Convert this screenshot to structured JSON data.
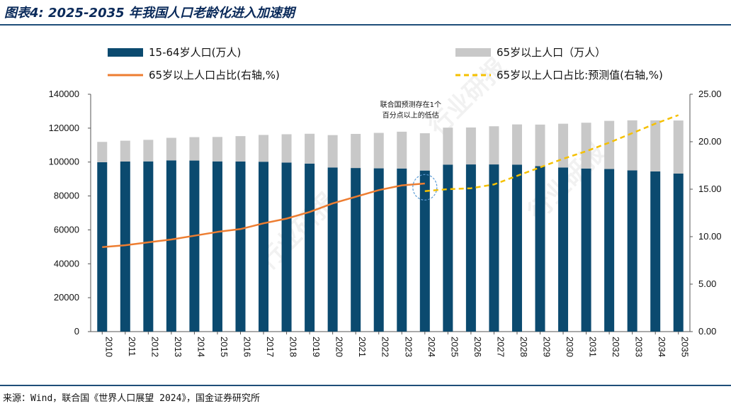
{
  "title": "图表4: 2025-2035 年我国人口老龄化进入加速期",
  "source": "来源：Wind，联合国《世界人口展望 2024》，国金证券研究所",
  "watermark": "行业研报",
  "colors": {
    "bar_working": "#0b4a6f",
    "bar_elderly": "#c8c8c8",
    "line_actual": "#ed7d31",
    "line_forecast": "#f5c000",
    "annot_circle": "#5b9bd5",
    "rule": "#1f4e79"
  },
  "chart_data": {
    "type": "bar",
    "categories": [
      "2010",
      "2011",
      "2012",
      "2013",
      "2014",
      "2015",
      "2016",
      "2017",
      "2018",
      "2019",
      "2020",
      "2021",
      "2022",
      "2023",
      "2024",
      "2025",
      "2026",
      "2027",
      "2028",
      "2029",
      "2030",
      "2031",
      "2032",
      "2033",
      "2034",
      "2035"
    ],
    "series": [
      {
        "name": "15-64岁人口(万人)",
        "kind": "stacked-bar",
        "axis": "left",
        "values": [
          99900,
          100300,
          100400,
          101000,
          100900,
          100400,
          100300,
          100200,
          99700,
          99100,
          96800,
          96500,
          96300,
          96200,
          95000,
          98500,
          98600,
          98600,
          98500,
          97600,
          96800,
          96200,
          95900,
          95100,
          94500,
          93200
        ]
      },
      {
        "name": "65岁以上人口（万人）",
        "kind": "stacked-bar",
        "axis": "left",
        "values": [
          12000,
          12300,
          12700,
          13300,
          13800,
          14400,
          15000,
          15800,
          16700,
          17600,
          19100,
          20100,
          20900,
          21700,
          22000,
          21800,
          21800,
          22500,
          23700,
          24500,
          25800,
          27000,
          28400,
          29500,
          30100,
          31300
        ]
      },
      {
        "name": "65岁以上人口占比(右轴,%)",
        "kind": "line",
        "axis": "right",
        "values": [
          8.9,
          9.1,
          9.4,
          9.7,
          10.1,
          10.5,
          10.8,
          11.4,
          11.9,
          12.6,
          13.5,
          14.2,
          14.9,
          15.4,
          15.6,
          null,
          null,
          null,
          null,
          null,
          null,
          null,
          null,
          null,
          null,
          null
        ]
      },
      {
        "name": "65岁以上人口占比:预测值(右轴,%)",
        "kind": "dashed-line",
        "axis": "right",
        "values": [
          null,
          null,
          null,
          null,
          null,
          null,
          null,
          null,
          null,
          null,
          null,
          null,
          null,
          null,
          14.8,
          15.0,
          15.1,
          15.5,
          16.4,
          17.3,
          18.2,
          19.0,
          19.9,
          20.9,
          21.9,
          22.8
        ]
      }
    ],
    "ylim_left": [
      0,
      140000
    ],
    "yticks_left": [
      "0",
      "20000",
      "40000",
      "60000",
      "80000",
      "100000",
      "120000",
      "140000"
    ],
    "ylim_right": [
      0,
      25
    ],
    "yticks_right": [
      "0.00",
      "5.00",
      "10.00",
      "15.00",
      "20.00",
      "25.00"
    ],
    "legend": [
      "15-64岁人口(万人)",
      "65岁以上人口（万人）",
      "65岁以上人口占比(右轴,%)",
      "65岁以上人口占比:预测值(右轴,%)"
    ],
    "legend_position": "top",
    "grid": false,
    "annotation": {
      "lines": [
        "联合国预测存在1个",
        "百分点以上的低估"
      ],
      "at_category": "2024"
    }
  }
}
